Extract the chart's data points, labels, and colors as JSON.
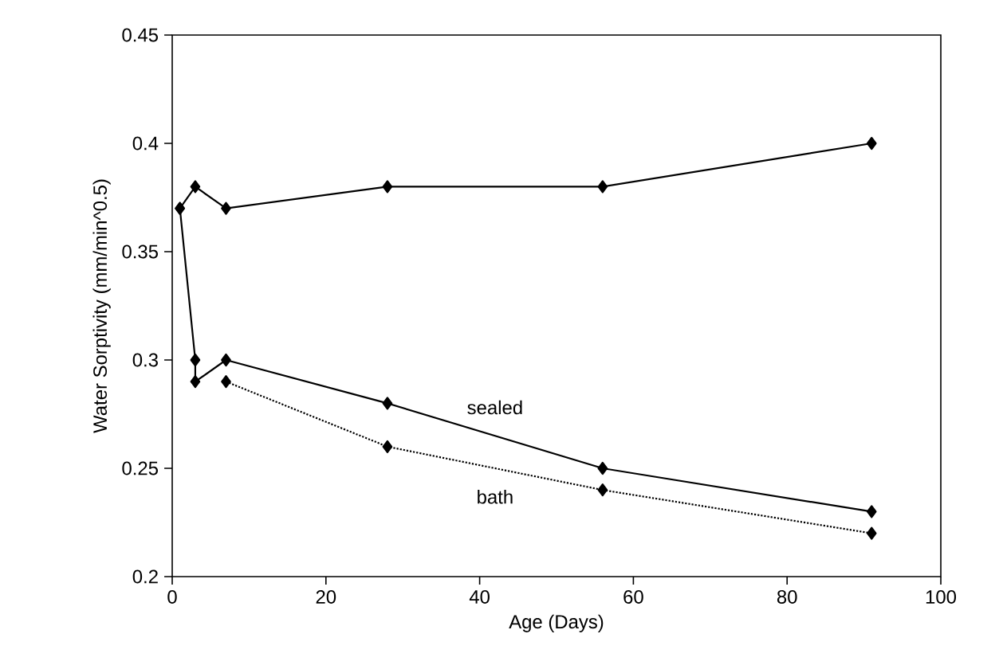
{
  "chart_data": {
    "type": "line",
    "xlabel": "Age (Days)",
    "ylabel": "Water Sorptivity (mm/min^0.5)",
    "xlim": [
      0,
      100
    ],
    "ylim": [
      0.2,
      0.45
    ],
    "xticks": [
      0,
      20,
      40,
      60,
      80,
      100
    ],
    "yticks": [
      0.2,
      0.25,
      0.3,
      0.35,
      0.4,
      0.45
    ],
    "marker": "diamond",
    "legend": false,
    "grid": false,
    "series": [
      {
        "color": "#000000",
        "line_style": "solid",
        "x": [
          1,
          3,
          7,
          28,
          56,
          91
        ],
        "values": [
          0.37,
          0.38,
          0.37,
          0.38,
          0.38,
          0.4
        ]
      },
      {
        "name": "sealed",
        "color": "#000000",
        "line_style": "solid",
        "x": [
          1,
          3,
          3,
          7,
          28,
          56,
          91
        ],
        "values": [
          0.37,
          0.3,
          0.29,
          0.3,
          0.28,
          0.25,
          0.23
        ]
      },
      {
        "name": "bath",
        "color": "#000000",
        "line_style": "dotted",
        "x": [
          7,
          28,
          56,
          91
        ],
        "values": [
          0.29,
          0.26,
          0.24,
          0.22
        ]
      }
    ]
  }
}
